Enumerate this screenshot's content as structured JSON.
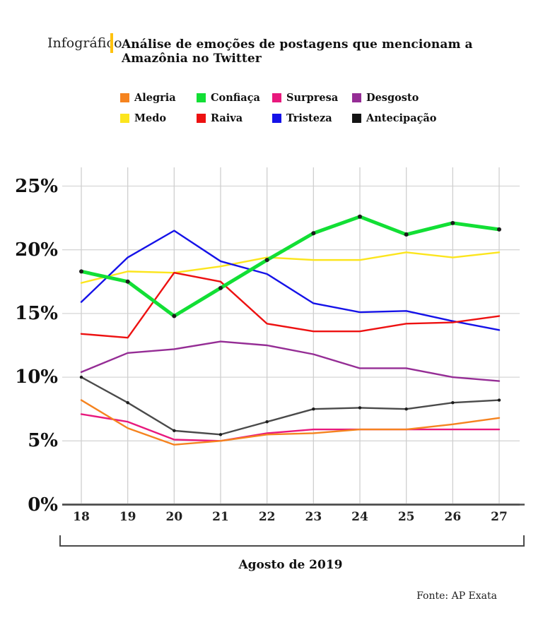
{
  "header": {
    "kicker": "Infográfico",
    "title": "Análise de emoções de postagens que mencionam a Amazônia no Twitter",
    "accent_color": "#FFC20E"
  },
  "chart_data": {
    "type": "line",
    "x": [
      18,
      19,
      20,
      21,
      22,
      23,
      24,
      25,
      26,
      27
    ],
    "xlabel": "Agosto de 2019",
    "ylabel": "",
    "ylim": [
      0,
      25
    ],
    "ytick_labels": [
      "0%",
      "5%",
      "10%",
      "15%",
      "20%",
      "25%"
    ],
    "grid": true,
    "legend_position": "top",
    "series": [
      {
        "name": "Alegria",
        "color": "#F5831F",
        "values": [
          8.2,
          6.0,
          4.7,
          5.0,
          5.5,
          5.6,
          5.9,
          5.9,
          6.3,
          6.8
        ]
      },
      {
        "name": "Confiaça",
        "color": "#12DF35",
        "values": [
          18.3,
          17.5,
          14.8,
          17.0,
          19.2,
          21.3,
          22.6,
          21.2,
          22.1,
          21.6
        ],
        "markers": true,
        "thick": true
      },
      {
        "name": "Surpresa",
        "color": "#E8197D",
        "values": [
          7.1,
          6.5,
          5.1,
          5.0,
          5.6,
          5.9,
          5.9,
          5.9,
          5.9,
          5.9
        ]
      },
      {
        "name": "Desgosto",
        "color": "#952D95",
        "values": [
          10.4,
          11.9,
          12.2,
          12.8,
          12.5,
          11.8,
          10.7,
          10.7,
          10.0,
          9.7
        ]
      },
      {
        "name": "Medo",
        "color": "#FCE51D",
        "values": [
          17.4,
          18.3,
          18.2,
          18.7,
          19.4,
          19.2,
          19.2,
          19.8,
          19.4,
          19.8
        ]
      },
      {
        "name": "Raiva",
        "color": "#ED1111",
        "values": [
          13.4,
          13.1,
          18.2,
          17.5,
          14.2,
          13.6,
          13.6,
          14.2,
          14.3,
          14.8
        ]
      },
      {
        "name": "Tristeza",
        "color": "#1512E8",
        "values": [
          15.9,
          19.4,
          21.5,
          19.1,
          18.1,
          15.8,
          15.1,
          15.2,
          14.4,
          13.7
        ]
      },
      {
        "name": "Antecipação",
        "color": "#141414",
        "line_color": "#4A4A4A",
        "values": [
          10.0,
          8.0,
          5.8,
          5.5,
          6.5,
          7.5,
          7.6,
          7.5,
          8.0,
          8.2
        ],
        "markers": true
      }
    ]
  },
  "footer": {
    "source": "Fonte: AP Exata"
  }
}
